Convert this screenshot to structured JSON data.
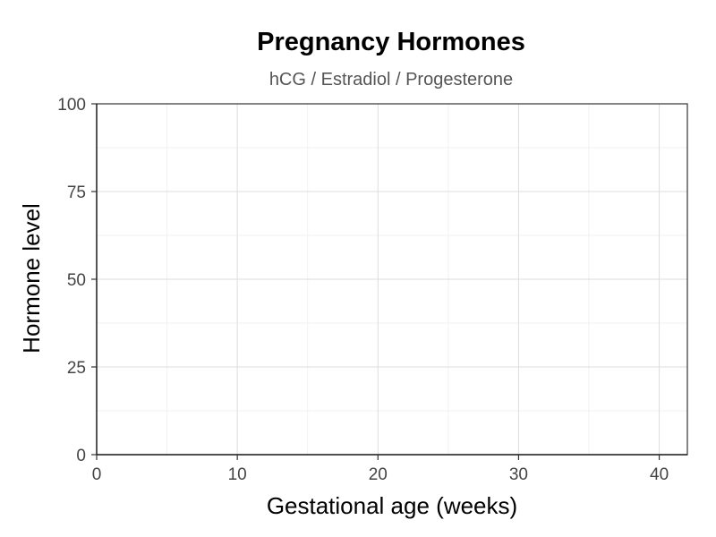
{
  "chart_data": {
    "type": "line",
    "title": "Pregnancy Hormones",
    "subtitle": "hCG / Estradiol / Progesterone",
    "xlabel": "Gestational age (weeks)",
    "ylabel": "Hormone level",
    "xlim": [
      0,
      42
    ],
    "ylim": [
      0,
      100
    ],
    "x_ticks": [
      0,
      10,
      20,
      30,
      40
    ],
    "y_ticks": [
      0,
      25,
      50,
      75,
      100
    ],
    "x_minor": [
      5,
      15,
      25,
      35
    ],
    "y_minor": [
      12.5,
      37.5,
      62.5,
      87.5
    ],
    "grid": true,
    "series": [],
    "colors": {
      "panel_border": "#333333",
      "major_grid": "#dddddd",
      "minor_grid": "#eeeeee",
      "tick_label": "#444444"
    }
  }
}
